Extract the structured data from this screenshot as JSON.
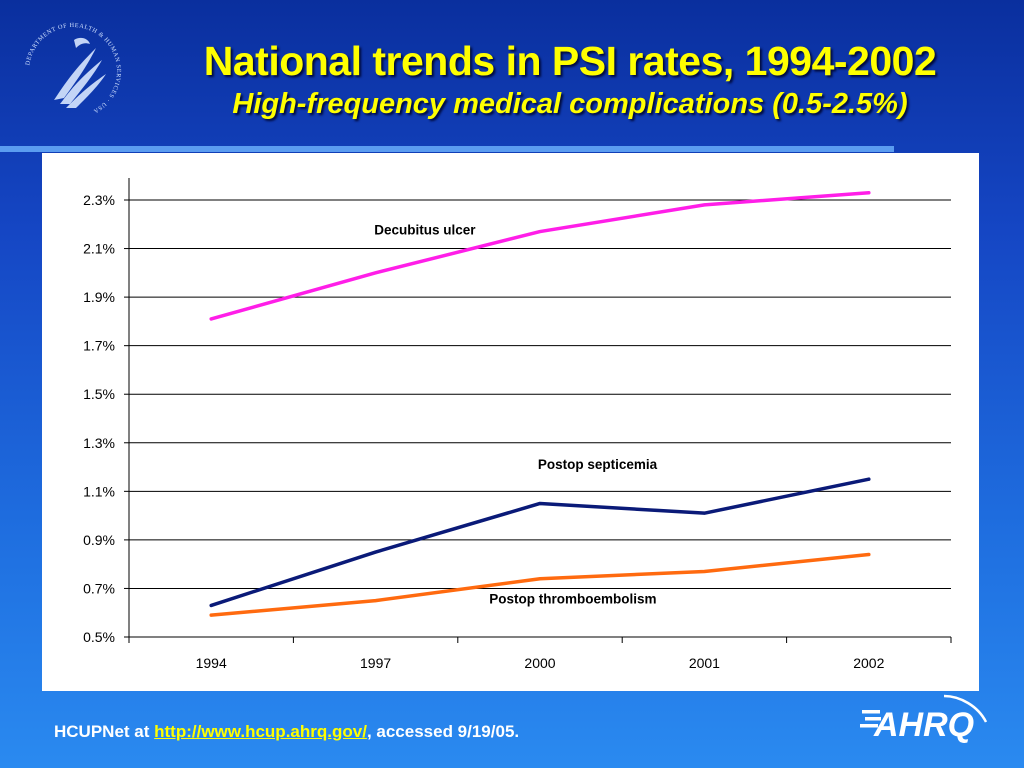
{
  "slide": {
    "title": "National trends in PSI rates, 1994-2002",
    "subtitle": "High-frequency medical complications (0.5-2.5%)"
  },
  "logo_left": {
    "icon": "hhs-eagle-seal-icon",
    "seal_text": "DEPARTMENT OF HEALTH & HUMAN SERVICES · USA"
  },
  "logo_right": {
    "icon": "ahrq-logo-icon",
    "text": "AHRQ"
  },
  "footer": {
    "prefix": "HCUPNet at ",
    "link": "http://www.hcup.ahrq.gov/",
    "suffix": ", accessed 9/19/05."
  },
  "colors": {
    "title": "#ffff00",
    "decubitus": "#ff1ee8",
    "septicemia": "#0a1a78",
    "thromboembolism": "#ff6a0f"
  },
  "chart_data": {
    "type": "line",
    "title": "",
    "xlabel": "",
    "ylabel": "",
    "categories": [
      "1994",
      "1997",
      "2000",
      "2001",
      "2002"
    ],
    "ylim": [
      0.5,
      2.3
    ],
    "yticks": [
      0.5,
      0.7,
      0.9,
      1.1,
      1.3,
      1.5,
      1.7,
      1.9,
      2.1,
      2.3
    ],
    "ytick_labels": [
      "0.5%",
      "0.7%",
      "0.9%",
      "1.1%",
      "1.3%",
      "1.5%",
      "1.7%",
      "1.9%",
      "2.1%",
      "2.3%"
    ],
    "grid": true,
    "series": [
      {
        "name": "Decubitus ulcer",
        "color": "#ff1ee8",
        "values": [
          1.81,
          2.0,
          2.17,
          2.28,
          2.33
        ]
      },
      {
        "name": "Postop septicemia",
        "color": "#0a1a78",
        "values": [
          0.63,
          0.85,
          1.05,
          1.01,
          1.15
        ]
      },
      {
        "name": "Postop thromboembolism",
        "color": "#ff6a0f",
        "values": [
          0.59,
          0.65,
          0.74,
          0.77,
          0.84
        ]
      }
    ]
  }
}
